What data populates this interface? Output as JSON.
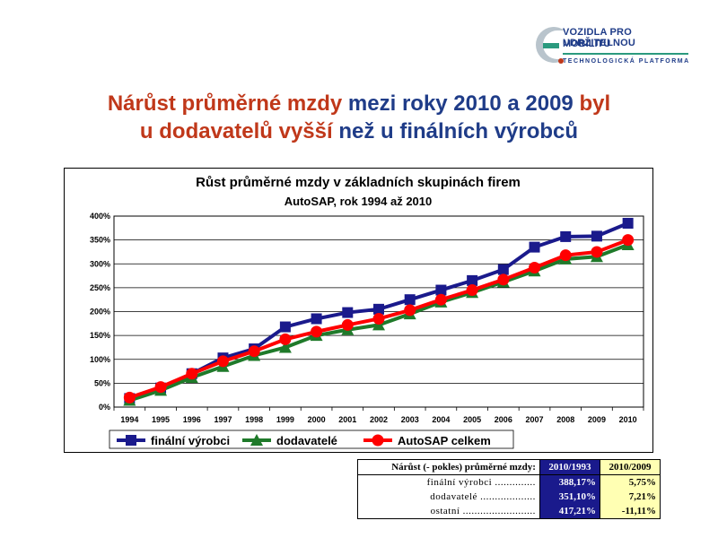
{
  "logo": {
    "line1": "VOZIDLA PRO UDRŽITELNOU",
    "line2": "MOBILITU",
    "line3": "TECHNOLOGICKÁ PLATFORMA",
    "colors": {
      "blue": "#1f3c88",
      "green": "#2b9a7e",
      "gray": "#b9c4cc",
      "red": "#c0381a"
    }
  },
  "title": {
    "p1": "Nárůst průměrné mzdy ",
    "p2": "mezi roky 2010 a 2009 ",
    "p3": "byl",
    "p4": "u dodavatelů vyšší ",
    "p5": "než u finálních výrobců"
  },
  "chart_data": {
    "type": "line",
    "title": "Růst průměrné mzdy v základních skupinách firem",
    "subtitle": "AutoSAP, rok 1994 až 2010",
    "x": [
      "1994",
      "1995",
      "1996",
      "1997",
      "1998",
      "1999",
      "2000",
      "2001",
      "2002",
      "2003",
      "2004",
      "2005",
      "2006",
      "2007",
      "2008",
      "2009",
      "2010"
    ],
    "yticks": [
      "0%",
      "50%",
      "100%",
      "150%",
      "200%",
      "250%",
      "300%",
      "350%",
      "400%"
    ],
    "ylim": [
      0,
      400
    ],
    "grid": true,
    "legend_position": "bottom",
    "series": [
      {
        "name": "finální výrobci",
        "color": "#1a1a8c",
        "marker": "square",
        "values": [
          18,
          40,
          70,
          103,
          122,
          168,
          185,
          198,
          205,
          225,
          245,
          265,
          288,
          335,
          357,
          358,
          385
        ]
      },
      {
        "name": "dodavatelé",
        "color": "#1f7a2a",
        "marker": "triangle",
        "values": [
          14,
          35,
          62,
          85,
          108,
          125,
          150,
          162,
          172,
          195,
          220,
          240,
          262,
          285,
          310,
          315,
          340
        ]
      },
      {
        "name": "AutoSAP celkem",
        "color": "#ff0000",
        "marker": "circle",
        "values": [
          20,
          42,
          70,
          96,
          117,
          142,
          158,
          172,
          185,
          203,
          225,
          245,
          267,
          292,
          318,
          325,
          350
        ]
      }
    ]
  },
  "table": {
    "header_label": "Nárůst (- pokles) průměrné mzdy:",
    "col1": "2010/1993",
    "col2": "2010/2009",
    "rows": [
      {
        "label": "finální výrobci ..............",
        "v1": "388,17%",
        "v2": "5,75%"
      },
      {
        "label": "dodavatelé ...................",
        "v1": "351,10%",
        "v2": "7,21%"
      },
      {
        "label": "ostatní .........................",
        "v1": "417,21%",
        "v2": "-11,11%"
      }
    ]
  }
}
